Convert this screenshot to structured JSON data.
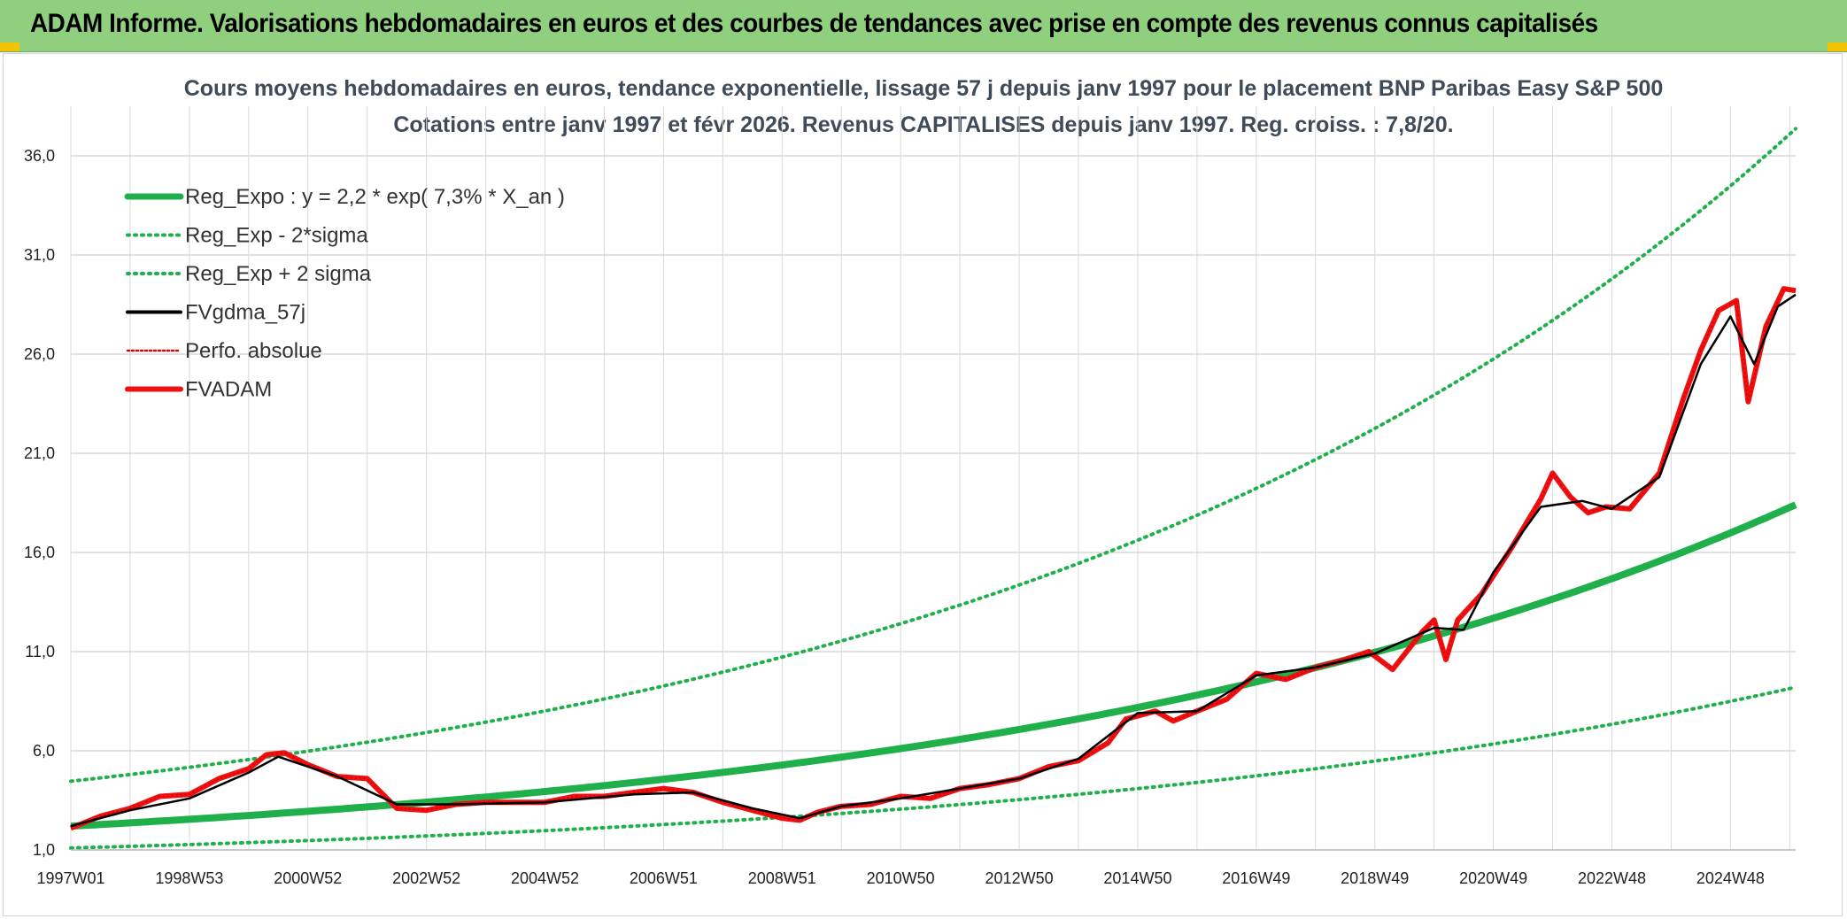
{
  "header": {
    "title": "ADAM Informe. Valorisations hebdomadaires en euros et des courbes de tendances avec prise en compte des revenus connus capitalisés"
  },
  "colors": {
    "header_bg": "#8fcf7e",
    "reg_expo": "#1fb04c",
    "sigma_lines": "#1fb04c",
    "fvgdma": "#000000",
    "perfo": "#e00000",
    "fvadam": "#ee1111",
    "grid": "#d9d9d9"
  },
  "chart_data": {
    "type": "line",
    "title": "Cours moyens hebdomadaires en euros, tendance exponentielle, lissage 57 j depuis janv 1997 pour le placement BNP Paribas Easy S&P 500",
    "subtitle": "Cotations entre janv 1997 et févr 2026. Revenus CAPITALISES depuis janv 1997. Reg. croiss. : 7,8/20.",
    "xlabel": "",
    "ylabel": "",
    "ylim": [
      1.0,
      38.5
    ],
    "y_ticks": [
      "1,0",
      "6,0",
      "11,0",
      "16,0",
      "21,0",
      "26,0",
      "31,0",
      "36,0"
    ],
    "y_tick_values": [
      1,
      6,
      11,
      16,
      21,
      26,
      31,
      36
    ],
    "x_range_years": [
      1997.0,
      2026.1
    ],
    "x_ticks": [
      "1997W01",
      "1998W53",
      "2000W52",
      "2002W52",
      "2004W52",
      "2006W51",
      "2008W51",
      "2010W50",
      "2012W50",
      "2014W50",
      "2016W49",
      "2018W49",
      "2020W49",
      "2022W48",
      "2024W48"
    ],
    "x_tick_years": [
      1997.0,
      1999.0,
      2001.0,
      2003.0,
      2005.0,
      2007.0,
      2009.0,
      2011.0,
      2013.0,
      2015.0,
      2017.0,
      2019.0,
      2021.0,
      2023.0,
      2025.0
    ],
    "grid": true,
    "legend_position": "top-left",
    "legend": [
      {
        "label": "Reg_Expo : y = 2,2 * exp( 7,3% *  X_an )",
        "style": "thick-green"
      },
      {
        "label": "Reg_Exp - 2*sigma",
        "style": "dotted-green"
      },
      {
        "label": "Reg_Exp + 2 sigma",
        "style": "dotted-green"
      },
      {
        "label": "FVgdma_57j",
        "style": "solid-black"
      },
      {
        "label": "Perfo. absolue",
        "style": "dotted-red"
      },
      {
        "label": "FVADAM",
        "style": "thick-red"
      }
    ],
    "regression": {
      "a": 2.2,
      "growth": 0.073,
      "lower_factor": 0.5,
      "upper_factor": 2.03
    },
    "series": [
      {
        "name": "FVADAM",
        "x": [
          1997.0,
          1997.5,
          1998.0,
          1998.5,
          1999.0,
          1999.5,
          2000.0,
          2000.3,
          2000.6,
          2001.0,
          2001.5,
          2002.0,
          2002.5,
          2003.0,
          2003.5,
          2004.0,
          2004.5,
          2005.0,
          2005.5,
          2006.0,
          2006.5,
          2007.0,
          2007.5,
          2008.0,
          2008.5,
          2009.0,
          2009.3,
          2009.6,
          2010.0,
          2010.5,
          2011.0,
          2011.5,
          2012.0,
          2012.5,
          2013.0,
          2013.5,
          2014.0,
          2014.5,
          2014.8,
          2015.3,
          2015.6,
          2016.0,
          2016.5,
          2017.0,
          2017.5,
          2018.0,
          2018.5,
          2018.9,
          2019.3,
          2019.8,
          2020.0,
          2020.2,
          2020.4,
          2020.8,
          2021.3,
          2021.8,
          2022.0,
          2022.3,
          2022.6,
          2022.9,
          2023.3,
          2023.8,
          2024.2,
          2024.5,
          2024.8,
          2025.1,
          2025.3,
          2025.6,
          2025.9,
          2026.1
        ],
        "values": [
          2.1,
          2.7,
          3.1,
          3.7,
          3.8,
          4.6,
          5.1,
          5.8,
          5.9,
          5.3,
          4.7,
          4.6,
          3.1,
          3.0,
          3.3,
          3.4,
          3.4,
          3.4,
          3.7,
          3.7,
          3.9,
          4.1,
          3.9,
          3.4,
          3.0,
          2.6,
          2.5,
          2.9,
          3.2,
          3.3,
          3.7,
          3.6,
          4.1,
          4.3,
          4.6,
          5.2,
          5.5,
          6.4,
          7.6,
          8.0,
          7.5,
          8.0,
          8.6,
          9.9,
          9.6,
          10.2,
          10.6,
          11.0,
          10.1,
          12.0,
          12.6,
          10.6,
          12.6,
          13.9,
          16.2,
          18.7,
          20.0,
          18.8,
          18.0,
          18.3,
          18.2,
          20.0,
          23.7,
          26.2,
          28.2,
          28.7,
          23.6,
          27.4,
          29.3,
          29.2
        ]
      },
      {
        "name": "FVgdma_57j",
        "x": [
          1997.0,
          1998.0,
          1999.0,
          2000.0,
          2000.5,
          2001.5,
          2002.5,
          2003.5,
          2005.0,
          2006.5,
          2007.5,
          2008.5,
          2009.3,
          2010.0,
          2011.0,
          2012.0,
          2013.0,
          2014.0,
          2015.0,
          2016.0,
          2017.0,
          2018.0,
          2019.0,
          2020.0,
          2020.5,
          2021.0,
          2021.8,
          2022.5,
          2023.0,
          2023.8,
          2024.5,
          2025.0,
          2025.4,
          2025.8,
          2026.1
        ],
        "values": [
          2.2,
          3.0,
          3.6,
          4.9,
          5.7,
          4.7,
          3.3,
          3.3,
          3.4,
          3.8,
          3.9,
          3.1,
          2.6,
          3.2,
          3.6,
          4.1,
          4.6,
          5.6,
          7.9,
          8.0,
          9.8,
          10.2,
          10.9,
          12.2,
          12.1,
          15.0,
          18.3,
          18.6,
          18.2,
          19.8,
          25.5,
          27.9,
          25.5,
          28.4,
          29.0
        ]
      }
    ]
  }
}
